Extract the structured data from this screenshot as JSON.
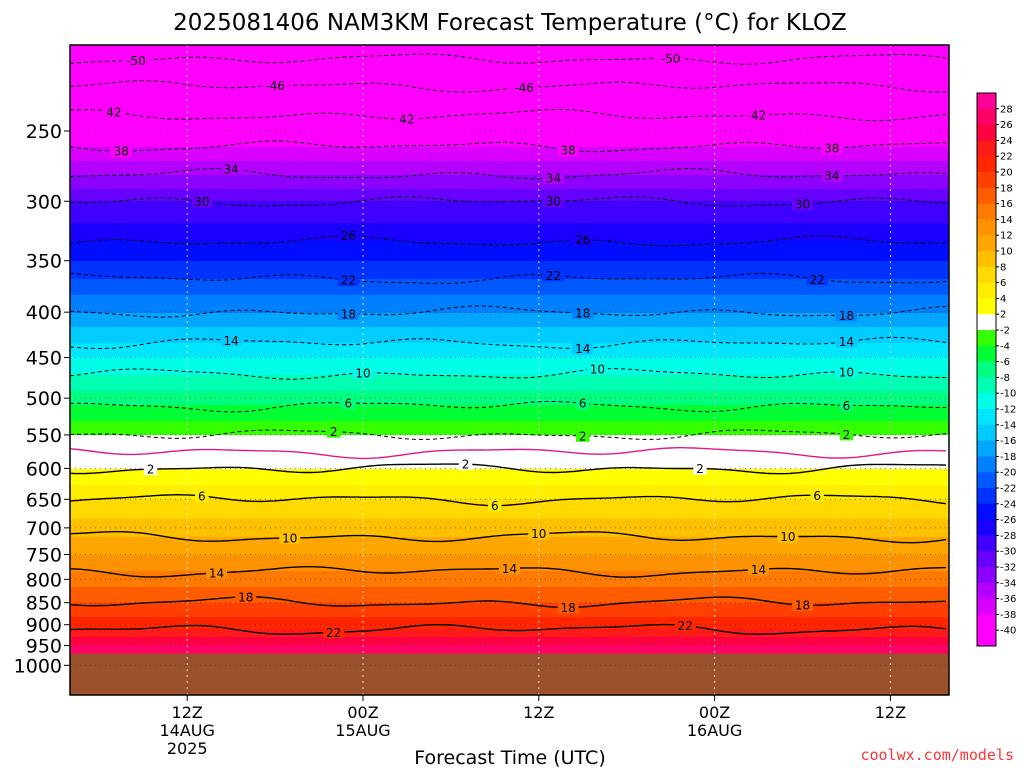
{
  "chart_data": {
    "type": "heatmap",
    "title": "2025081406 NAM3KM Forecast Temperature (°C) for KLOZ",
    "xlabel": "Forecast Time (UTC)",
    "ylabel": "",
    "credit": "coolwx.com/models",
    "x_range_hours": [
      -2,
      58
    ],
    "y_log_scale": true,
    "y_range_mb": [
      200,
      1080
    ],
    "grid": true,
    "legend": "right",
    "x_ticks": [
      {
        "hour": 6,
        "line1": "12Z",
        "line2": "14AUG",
        "line3": "2025"
      },
      {
        "hour": 18,
        "line1": "00Z",
        "line2": "15AUG",
        "line3": ""
      },
      {
        "hour": 30,
        "line1": "12Z",
        "line2": "",
        "line3": ""
      },
      {
        "hour": 42,
        "line1": "00Z",
        "line2": "16AUG",
        "line3": ""
      },
      {
        "hour": 54,
        "line1": "12Z",
        "line2": "",
        "line3": ""
      }
    ],
    "y_ticks": [
      250,
      300,
      350,
      400,
      450,
      500,
      550,
      600,
      650,
      700,
      750,
      800,
      850,
      900,
      950,
      1000
    ],
    "surface_pressure_mb": 970,
    "surface_color": "#9b522c",
    "temperature_profile": [
      {
        "p": 200,
        "t": -52
      },
      {
        "p": 230,
        "t": -44
      },
      {
        "p": 260,
        "t": -38
      },
      {
        "p": 300,
        "t": -30
      },
      {
        "p": 350,
        "t": -24
      },
      {
        "p": 400,
        "t": -18
      },
      {
        "p": 450,
        "t": -12
      },
      {
        "p": 500,
        "t": -7
      },
      {
        "p": 550,
        "t": -2
      },
      {
        "p": 600,
        "t": 2
      },
      {
        "p": 650,
        "t": 6
      },
      {
        "p": 700,
        "t": 9
      },
      {
        "p": 750,
        "t": 12
      },
      {
        "p": 800,
        "t": 15
      },
      {
        "p": 850,
        "t": 18
      },
      {
        "p": 900,
        "t": 21
      },
      {
        "p": 950,
        "t": 26
      },
      {
        "p": 1000,
        "t": 30
      }
    ],
    "contours": [
      {
        "t": -50,
        "style": "dashed",
        "labels": [
          {
            "hour": 2.5,
            "text": "-50"
          },
          {
            "hour": 39,
            "text": "-50"
          }
        ]
      },
      {
        "t": -46,
        "style": "dashed",
        "labels": [
          {
            "hour": 12,
            "text": "-46"
          },
          {
            "hour": 29,
            "text": "-46"
          }
        ]
      },
      {
        "t": -42,
        "style": "dashed",
        "labels": [
          {
            "hour": 1,
            "text": "42"
          },
          {
            "hour": 21,
            "text": "42"
          },
          {
            "hour": 45,
            "text": "42"
          }
        ]
      },
      {
        "t": -38,
        "style": "dashed",
        "labels": [
          {
            "hour": 1.5,
            "text": "38"
          },
          {
            "hour": 32,
            "text": "38"
          },
          {
            "hour": 50,
            "text": "38"
          }
        ]
      },
      {
        "t": -34,
        "style": "dashed",
        "labels": [
          {
            "hour": 9,
            "text": "34"
          },
          {
            "hour": 31,
            "text": "34"
          },
          {
            "hour": 50,
            "text": "34"
          }
        ]
      },
      {
        "t": -30,
        "style": "dashed",
        "labels": [
          {
            "hour": 7,
            "text": "30"
          },
          {
            "hour": 31,
            "text": "30"
          },
          {
            "hour": 48,
            "text": "30"
          }
        ]
      },
      {
        "t": -26,
        "style": "dashed",
        "labels": [
          {
            "hour": 17,
            "text": "26"
          },
          {
            "hour": 33,
            "text": "26"
          }
        ]
      },
      {
        "t": -22,
        "style": "dashed",
        "labels": [
          {
            "hour": 17,
            "text": "22"
          },
          {
            "hour": 31,
            "text": "22"
          },
          {
            "hour": 49,
            "text": "22"
          }
        ]
      },
      {
        "t": -18,
        "style": "dashed",
        "labels": [
          {
            "hour": 17,
            "text": "18"
          },
          {
            "hour": 33,
            "text": "18"
          },
          {
            "hour": 51,
            "text": "18"
          }
        ]
      },
      {
        "t": -14,
        "style": "dashed",
        "labels": [
          {
            "hour": 9,
            "text": "14"
          },
          {
            "hour": 33,
            "text": "14"
          },
          {
            "hour": 51,
            "text": "14"
          }
        ]
      },
      {
        "t": -10,
        "style": "dashed",
        "labels": [
          {
            "hour": 18,
            "text": "10"
          },
          {
            "hour": 34,
            "text": "10"
          },
          {
            "hour": 51,
            "text": "10"
          }
        ]
      },
      {
        "t": -6,
        "style": "dashed",
        "labels": [
          {
            "hour": 17,
            "text": "6"
          },
          {
            "hour": 33,
            "text": "6"
          },
          {
            "hour": 51,
            "text": "6"
          }
        ]
      },
      {
        "t": -2,
        "style": "dashed",
        "labels": [
          {
            "hour": 16,
            "text": "2"
          },
          {
            "hour": 33,
            "text": "2"
          },
          {
            "hour": 51,
            "text": "2"
          }
        ]
      },
      {
        "t": 0,
        "style": "magenta",
        "labels": []
      },
      {
        "t": 2,
        "style": "solid",
        "labels": [
          {
            "hour": 3.5,
            "text": "2"
          },
          {
            "hour": 25,
            "text": "2"
          },
          {
            "hour": 41,
            "text": "2"
          }
        ]
      },
      {
        "t": 6,
        "style": "solid",
        "labels": [
          {
            "hour": 7,
            "text": "6"
          },
          {
            "hour": 27,
            "text": "6"
          },
          {
            "hour": 49,
            "text": "6"
          }
        ]
      },
      {
        "t": 10,
        "style": "solid",
        "labels": [
          {
            "hour": 13,
            "text": "10"
          },
          {
            "hour": 30,
            "text": "10"
          },
          {
            "hour": 47,
            "text": "10"
          }
        ]
      },
      {
        "t": 14,
        "style": "solid",
        "labels": [
          {
            "hour": 8,
            "text": "14"
          },
          {
            "hour": 28,
            "text": "14"
          },
          {
            "hour": 45,
            "text": "14"
          }
        ]
      },
      {
        "t": 18,
        "style": "solid",
        "labels": [
          {
            "hour": 10,
            "text": "18"
          },
          {
            "hour": 32,
            "text": "18"
          },
          {
            "hour": 48,
            "text": "18"
          }
        ]
      },
      {
        "t": 22,
        "style": "solid",
        "labels": [
          {
            "hour": 16,
            "text": "22"
          },
          {
            "hour": 40,
            "text": "22"
          }
        ]
      }
    ],
    "colorbar": {
      "labels": [
        "28",
        "26",
        "24",
        "22",
        "20",
        "18",
        "16",
        "14",
        "12",
        "10",
        "8",
        "6",
        "4",
        "2",
        "-2",
        "-4",
        "-6",
        "-8",
        "-10",
        "-12",
        "-14",
        "-16",
        "-18",
        "-20",
        "-22",
        "-24",
        "-26",
        "-28",
        "-30",
        "-32",
        "-34",
        "-36",
        "-38",
        "-40"
      ],
      "bins": [
        {
          "min": 28,
          "color": "#ff0099"
        },
        {
          "min": 26,
          "color": "#ff0066"
        },
        {
          "min": 24,
          "color": "#ff0040"
        },
        {
          "min": 22,
          "color": "#ff1a1a"
        },
        {
          "min": 20,
          "color": "#ff2600"
        },
        {
          "min": 18,
          "color": "#ff4000"
        },
        {
          "min": 16,
          "color": "#ff5c00"
        },
        {
          "min": 14,
          "color": "#ff7a00"
        },
        {
          "min": 12,
          "color": "#ff9200"
        },
        {
          "min": 10,
          "color": "#ffa600"
        },
        {
          "min": 8,
          "color": "#ffc000"
        },
        {
          "min": 6,
          "color": "#ffd900"
        },
        {
          "min": 4,
          "color": "#ffee00"
        },
        {
          "min": 2,
          "color": "#ffff00"
        },
        {
          "min": -2,
          "color": "#ffffff"
        },
        {
          "min": -4,
          "color": "#33ff00"
        },
        {
          "min": -6,
          "color": "#00ff33"
        },
        {
          "min": -8,
          "color": "#00ff80"
        },
        {
          "min": -10,
          "color": "#00ffb3"
        },
        {
          "min": -12,
          "color": "#00ffe6"
        },
        {
          "min": -14,
          "color": "#00e6ff"
        },
        {
          "min": -16,
          "color": "#00ccff"
        },
        {
          "min": -18,
          "color": "#00a6ff"
        },
        {
          "min": -20,
          "color": "#0080ff"
        },
        {
          "min": -22,
          "color": "#0059ff"
        },
        {
          "min": -24,
          "color": "#0033ff"
        },
        {
          "min": -26,
          "color": "#000dff"
        },
        {
          "min": -28,
          "color": "#1a00ff"
        },
        {
          "min": -30,
          "color": "#4000ff"
        },
        {
          "min": -32,
          "color": "#6600ff"
        },
        {
          "min": -34,
          "color": "#8c00ff"
        },
        {
          "min": -36,
          "color": "#b300ff"
        },
        {
          "min": -38,
          "color": "#d900ff"
        },
        {
          "min": -40,
          "color": "#ff00ff"
        },
        {
          "min": -999,
          "color": "#ff00ff"
        }
      ]
    }
  }
}
